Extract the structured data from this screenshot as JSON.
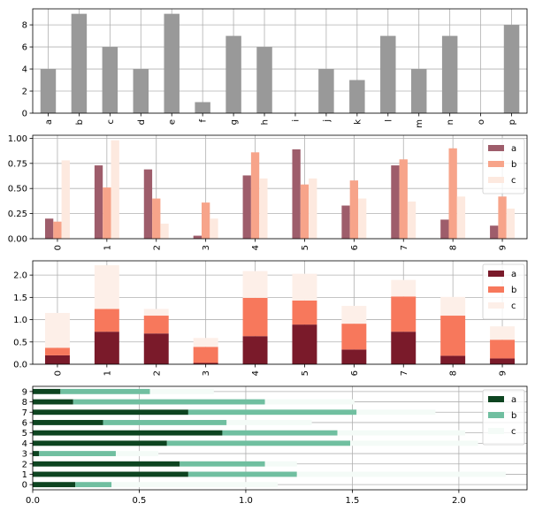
{
  "chart_data": [
    {
      "type": "bar",
      "categories": [
        "a",
        "b",
        "c",
        "d",
        "e",
        "f",
        "g",
        "h",
        "i",
        "j",
        "k",
        "l",
        "m",
        "n",
        "o",
        "p"
      ],
      "series": [
        {
          "values": [
            4,
            9,
            6,
            4,
            9,
            1,
            7,
            6,
            0,
            4,
            3,
            7,
            4,
            7,
            0,
            8
          ],
          "color": "#999999"
        }
      ],
      "ylim": [
        0,
        9.45
      ],
      "yticks": [
        0,
        2,
        4,
        6,
        8
      ],
      "ytick_labels": [
        "0",
        "2",
        "4",
        "6",
        "8"
      ],
      "grid": true,
      "xtick_rotation": 90
    },
    {
      "type": "bar",
      "grouped": true,
      "categories": [
        "0",
        "1",
        "2",
        "3",
        "4",
        "5",
        "6",
        "7",
        "8",
        "9"
      ],
      "series": [
        {
          "name": "a",
          "values": [
            0.2,
            0.73,
            0.69,
            0.03,
            0.63,
            0.89,
            0.33,
            0.73,
            0.19,
            0.13
          ],
          "color": "#9e5d6b"
        },
        {
          "name": "b",
          "values": [
            0.17,
            0.51,
            0.4,
            0.36,
            0.86,
            0.54,
            0.58,
            0.79,
            0.9,
            0.42
          ],
          "color": "#f7a48a"
        },
        {
          "name": "c",
          "values": [
            0.78,
            0.98,
            0.15,
            0.2,
            0.6,
            0.6,
            0.4,
            0.37,
            0.42,
            0.3
          ],
          "color": "#fde9df"
        }
      ],
      "ylim": [
        0,
        1.03
      ],
      "yticks": [
        0,
        0.25,
        0.5,
        0.75,
        1.0
      ],
      "ytick_labels": [
        "0.00",
        "0.25",
        "0.50",
        "0.75",
        "1.00"
      ],
      "grid": true,
      "legend": "top-right",
      "xtick_rotation": 90
    },
    {
      "type": "bar",
      "stacked": true,
      "categories": [
        "0",
        "1",
        "2",
        "3",
        "4",
        "5",
        "6",
        "7",
        "8",
        "9"
      ],
      "series": [
        {
          "name": "a",
          "values": [
            0.2,
            0.73,
            0.69,
            0.03,
            0.63,
            0.89,
            0.33,
            0.73,
            0.19,
            0.13
          ],
          "color": "#7a1a2a"
        },
        {
          "name": "b",
          "values": [
            0.17,
            0.51,
            0.4,
            0.36,
            0.86,
            0.54,
            0.58,
            0.79,
            0.9,
            0.42
          ],
          "color": "#f7785c"
        },
        {
          "name": "c",
          "values": [
            0.78,
            0.98,
            0.15,
            0.2,
            0.6,
            0.6,
            0.4,
            0.37,
            0.42,
            0.3
          ],
          "color": "#fdefe8"
        }
      ],
      "ylim": [
        0,
        2.32
      ],
      "yticks": [
        0,
        0.5,
        1.0,
        1.5,
        2.0
      ],
      "ytick_labels": [
        "0.0",
        "0.5",
        "1.0",
        "1.5",
        "2.0"
      ],
      "grid": true,
      "legend": "top-right",
      "xtick_rotation": 90
    },
    {
      "type": "barh",
      "stacked": true,
      "categories": [
        "0",
        "1",
        "2",
        "3",
        "4",
        "5",
        "6",
        "7",
        "8",
        "9"
      ],
      "series": [
        {
          "name": "a",
          "values": [
            0.2,
            0.73,
            0.69,
            0.03,
            0.63,
            0.89,
            0.33,
            0.73,
            0.19,
            0.13
          ],
          "color": "#0d4420"
        },
        {
          "name": "b",
          "values": [
            0.17,
            0.51,
            0.4,
            0.36,
            0.86,
            0.54,
            0.58,
            0.79,
            0.9,
            0.42
          ],
          "color": "#70bfa0"
        },
        {
          "name": "c",
          "values": [
            0.78,
            0.98,
            0.15,
            0.2,
            0.6,
            0.6,
            0.4,
            0.37,
            0.42,
            0.3
          ],
          "color": "#f4fbf7"
        }
      ],
      "xlim": [
        0,
        2.32
      ],
      "xticks": [
        0,
        0.5,
        1.0,
        1.5,
        2.0
      ],
      "xtick_labels": [
        "0.0",
        "0.5",
        "1.0",
        "1.5",
        "2.0"
      ],
      "grid": true,
      "legend": "top-right"
    }
  ]
}
